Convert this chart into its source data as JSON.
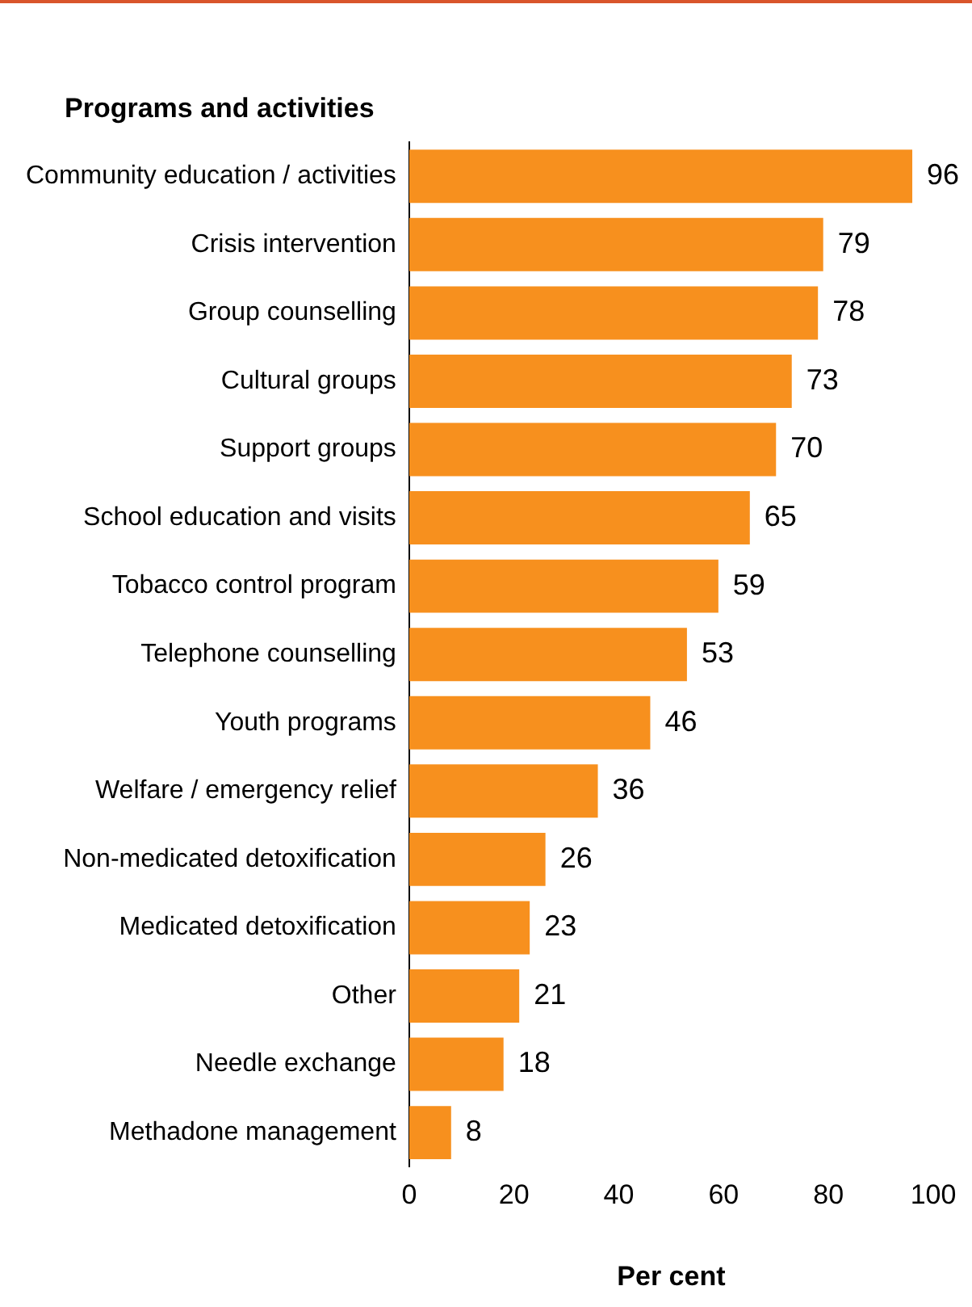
{
  "chart_data": {
    "type": "bar",
    "orientation": "horizontal",
    "title": "Programs and activities",
    "xlabel": "Per cent",
    "categories": [
      "Community education / activities",
      "Crisis intervention",
      "Group counselling",
      "Cultural groups",
      "Support groups",
      "School education and visits",
      "Tobacco control program",
      "Telephone counselling",
      "Youth programs",
      "Welfare / emergency relief",
      "Non-medicated detoxification",
      "Medicated detoxification",
      "Other",
      "Needle exchange",
      "Methadone management"
    ],
    "values": [
      96,
      79,
      78,
      73,
      70,
      65,
      59,
      53,
      46,
      36,
      26,
      23,
      21,
      18,
      8
    ],
    "color": "#f7901e",
    "xlim": [
      0,
      100
    ],
    "xticks": [
      0,
      20,
      40,
      60,
      80,
      100
    ],
    "data_labels": true,
    "grid": false,
    "legend": false
  }
}
